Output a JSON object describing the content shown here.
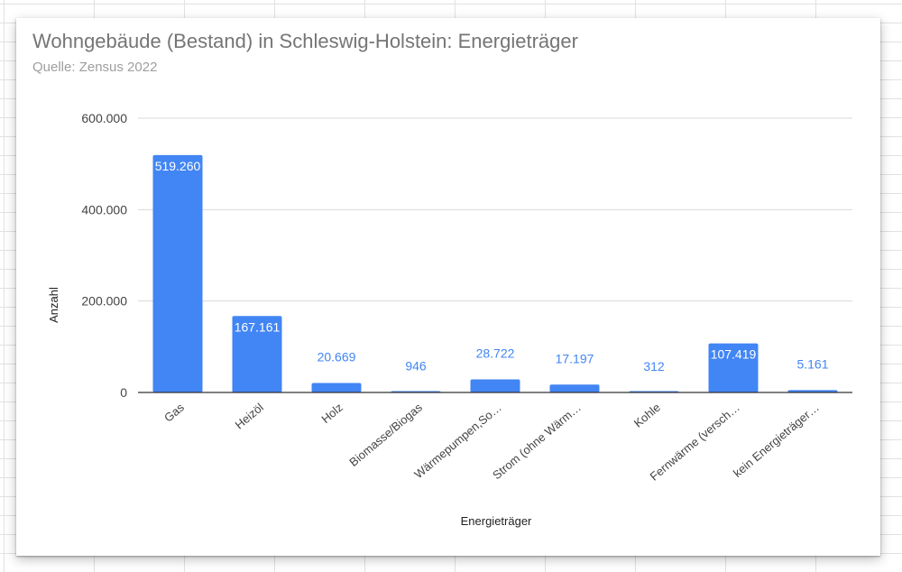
{
  "chart_data": {
    "type": "bar",
    "title": "Wohngebäude (Bestand) in Schleswig-Holstein: Energieträger",
    "subtitle": "Quelle: Zensus 2022",
    "xlabel": "Energieträger",
    "ylabel": "Anzahl",
    "ylim": [
      0,
      600000
    ],
    "yticks": [
      0,
      200000,
      400000,
      600000
    ],
    "ytick_labels": [
      "0",
      "200.000",
      "400.000",
      "600.000"
    ],
    "grid": true,
    "categories": [
      "Gas",
      "Heizöl",
      "Holz",
      "Biomasse/Biogas",
      "Wärmepumpen,So…",
      "Strom (ohne Wärm…",
      "Kohle",
      "Fernwärme (versch…",
      "kein Energieträger…"
    ],
    "values": [
      519260,
      167161,
      20669,
      946,
      28722,
      17197,
      312,
      107419,
      5161
    ],
    "value_labels": [
      "519.260",
      "167.161",
      "20.669",
      "946",
      "28.722",
      "17.197",
      "312",
      "107.419",
      "5.161"
    ],
    "colors": {
      "bar": "#4285f4",
      "label_inside": "#ffffff",
      "label_outside": "#4285f4",
      "axis_text": "#444444",
      "gridline": "#d9d9d9",
      "baseline": "#333333"
    }
  }
}
